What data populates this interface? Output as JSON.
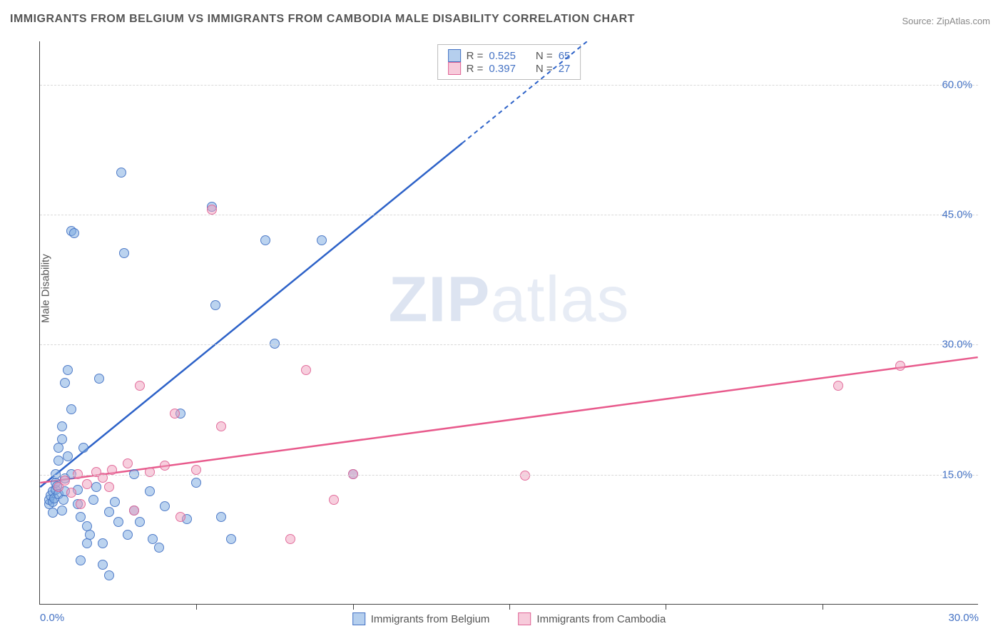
{
  "title": "IMMIGRANTS FROM BELGIUM VS IMMIGRANTS FROM CAMBODIA MALE DISABILITY CORRELATION CHART",
  "source": "Source: ZipAtlas.com",
  "ylabel": "Male Disability",
  "watermark": {
    "prefix": "ZIP",
    "suffix": "atlas"
  },
  "chart": {
    "type": "scatter-with-regression",
    "background": "#ffffff",
    "grid_color": "#d8d8d8",
    "xlim": [
      0,
      30
    ],
    "ylim": [
      0,
      65
    ],
    "yticks": [
      {
        "v": 15,
        "label": "15.0%"
      },
      {
        "v": 30,
        "label": "30.0%"
      },
      {
        "v": 45,
        "label": "45.0%"
      },
      {
        "v": 60,
        "label": "60.0%"
      }
    ],
    "xticks_minor": [
      5,
      10,
      15,
      20,
      25
    ],
    "xticks_label": [
      {
        "v": 0,
        "label": "0.0%",
        "align": "left"
      },
      {
        "v": 30,
        "label": "30.0%",
        "align": "right"
      }
    ],
    "series": [
      {
        "name": "Immigrants from Belgium",
        "color_fill": "rgba(120,168,224,0.5)",
        "color_stroke": "#4472c4",
        "R": 0.525,
        "N": 65,
        "regression": {
          "x1": 0,
          "y1": 13.5,
          "x2": 17.5,
          "y2": 65,
          "color": "#2d62c8",
          "dashed_after_x": 13.5
        },
        "points": [
          [
            0.3,
            11.5
          ],
          [
            0.3,
            12
          ],
          [
            0.35,
            12.5
          ],
          [
            0.4,
            13
          ],
          [
            0.4,
            10.5
          ],
          [
            0.4,
            11.8
          ],
          [
            0.45,
            12.2
          ],
          [
            0.5,
            13.2
          ],
          [
            0.5,
            14
          ],
          [
            0.5,
            15
          ],
          [
            0.55,
            13.6
          ],
          [
            0.6,
            12.7
          ],
          [
            0.6,
            16.5
          ],
          [
            0.6,
            18
          ],
          [
            0.7,
            19
          ],
          [
            0.7,
            20.5
          ],
          [
            0.7,
            10.8
          ],
          [
            0.75,
            12
          ],
          [
            0.8,
            13
          ],
          [
            0.8,
            14.5
          ],
          [
            0.8,
            25.5
          ],
          [
            0.9,
            27
          ],
          [
            0.9,
            17
          ],
          [
            1.0,
            22.5
          ],
          [
            1.0,
            15
          ],
          [
            1.0,
            43
          ],
          [
            1.1,
            42.8
          ],
          [
            1.2,
            13.2
          ],
          [
            1.2,
            11.5
          ],
          [
            1.3,
            10
          ],
          [
            1.3,
            5
          ],
          [
            1.4,
            18
          ],
          [
            1.5,
            9
          ],
          [
            1.5,
            7
          ],
          [
            1.6,
            8
          ],
          [
            1.7,
            12
          ],
          [
            1.8,
            13.5
          ],
          [
            1.9,
            26
          ],
          [
            2.0,
            4.5
          ],
          [
            2.0,
            7
          ],
          [
            2.2,
            10.6
          ],
          [
            2.2,
            3.3
          ],
          [
            2.4,
            11.8
          ],
          [
            2.5,
            9.5
          ],
          [
            2.6,
            49.8
          ],
          [
            2.7,
            40.5
          ],
          [
            2.8,
            8
          ],
          [
            3.0,
            10.8
          ],
          [
            3.0,
            15
          ],
          [
            3.2,
            9.5
          ],
          [
            3.5,
            13
          ],
          [
            3.6,
            7.5
          ],
          [
            3.8,
            6.5
          ],
          [
            4.0,
            11.3
          ],
          [
            4.5,
            22
          ],
          [
            4.7,
            9.8
          ],
          [
            5.0,
            14
          ],
          [
            5.5,
            45.8
          ],
          [
            5.6,
            34.5
          ],
          [
            5.8,
            10
          ],
          [
            6.1,
            7.5
          ],
          [
            7.2,
            42
          ],
          [
            7.5,
            30
          ],
          [
            9.0,
            42
          ],
          [
            10.0,
            15
          ]
        ]
      },
      {
        "name": "Immigrants from Cambodia",
        "color_fill": "rgba(240,160,190,0.5)",
        "color_stroke": "#e06496",
        "R": 0.397,
        "N": 27,
        "regression": {
          "x1": 0,
          "y1": 14,
          "x2": 30,
          "y2": 28.5,
          "color": "#e85a8c"
        },
        "points": [
          [
            0.6,
            13.5
          ],
          [
            0.8,
            14.2
          ],
          [
            1.0,
            12.8
          ],
          [
            1.2,
            15
          ],
          [
            1.3,
            11.5
          ],
          [
            1.5,
            13.8
          ],
          [
            1.8,
            15.2
          ],
          [
            2.0,
            14.6
          ],
          [
            2.2,
            13.5
          ],
          [
            2.3,
            15.5
          ],
          [
            2.8,
            16.2
          ],
          [
            3.0,
            10.8
          ],
          [
            3.2,
            25.2
          ],
          [
            3.5,
            15.2
          ],
          [
            4.0,
            16
          ],
          [
            4.3,
            22
          ],
          [
            4.5,
            10
          ],
          [
            5.0,
            15.5
          ],
          [
            5.5,
            45.5
          ],
          [
            5.8,
            20.5
          ],
          [
            8.0,
            7.5
          ],
          [
            8.5,
            27
          ],
          [
            9.4,
            12
          ],
          [
            10.0,
            15
          ],
          [
            15.5,
            14.8
          ],
          [
            25.5,
            25.2
          ],
          [
            27.5,
            27.5
          ]
        ]
      }
    ],
    "legend_top": {
      "rows": [
        {
          "swatch": "blue",
          "r_label": "R = ",
          "r_val": "0.525",
          "n_label": "N = ",
          "n_val": "65"
        },
        {
          "swatch": "pink",
          "r_label": "R = ",
          "r_val": "0.397",
          "n_label": "N = ",
          "n_val": "27"
        }
      ]
    },
    "legend_bottom": [
      {
        "swatch": "blue",
        "label": "Immigrants from Belgium"
      },
      {
        "swatch": "pink",
        "label": "Immigrants from Cambodia"
      }
    ]
  }
}
